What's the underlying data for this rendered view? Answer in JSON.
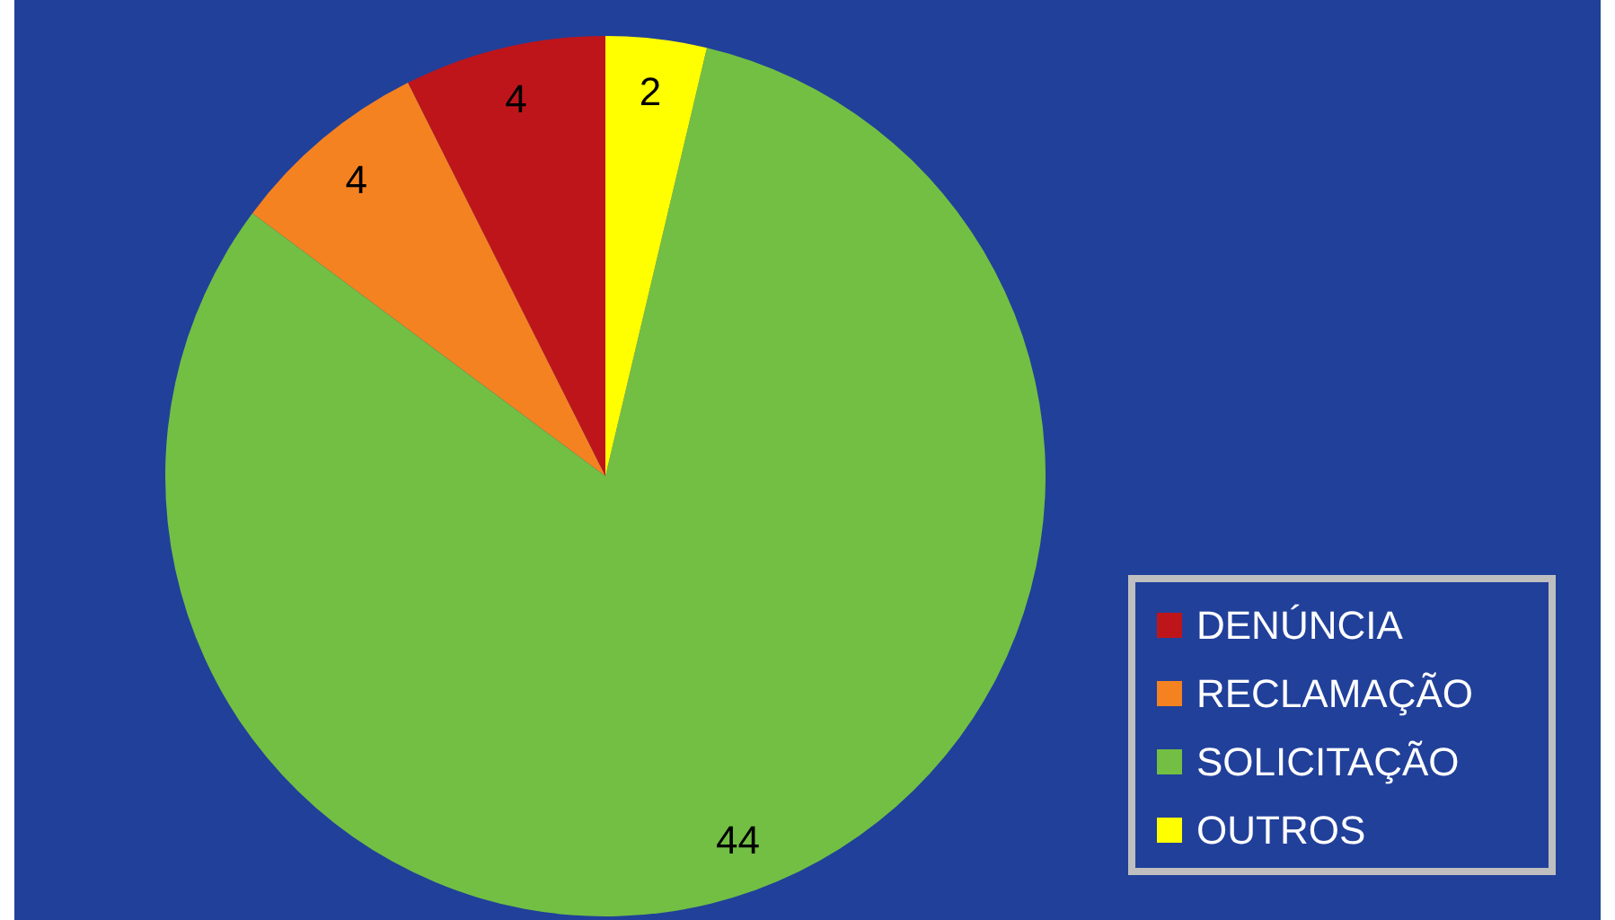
{
  "chart_data": {
    "type": "pie",
    "categories": [
      "DENÚNCIA",
      "RECLAMAÇÃO",
      "SOLICITAÇÃO",
      "OUTROS"
    ],
    "values": [
      4,
      4,
      44,
      2
    ],
    "colors": [
      "#be151b",
      "#f58220",
      "#72bf44",
      "#ffff00"
    ],
    "data_labels": true,
    "legend": "bottom right"
  }
}
